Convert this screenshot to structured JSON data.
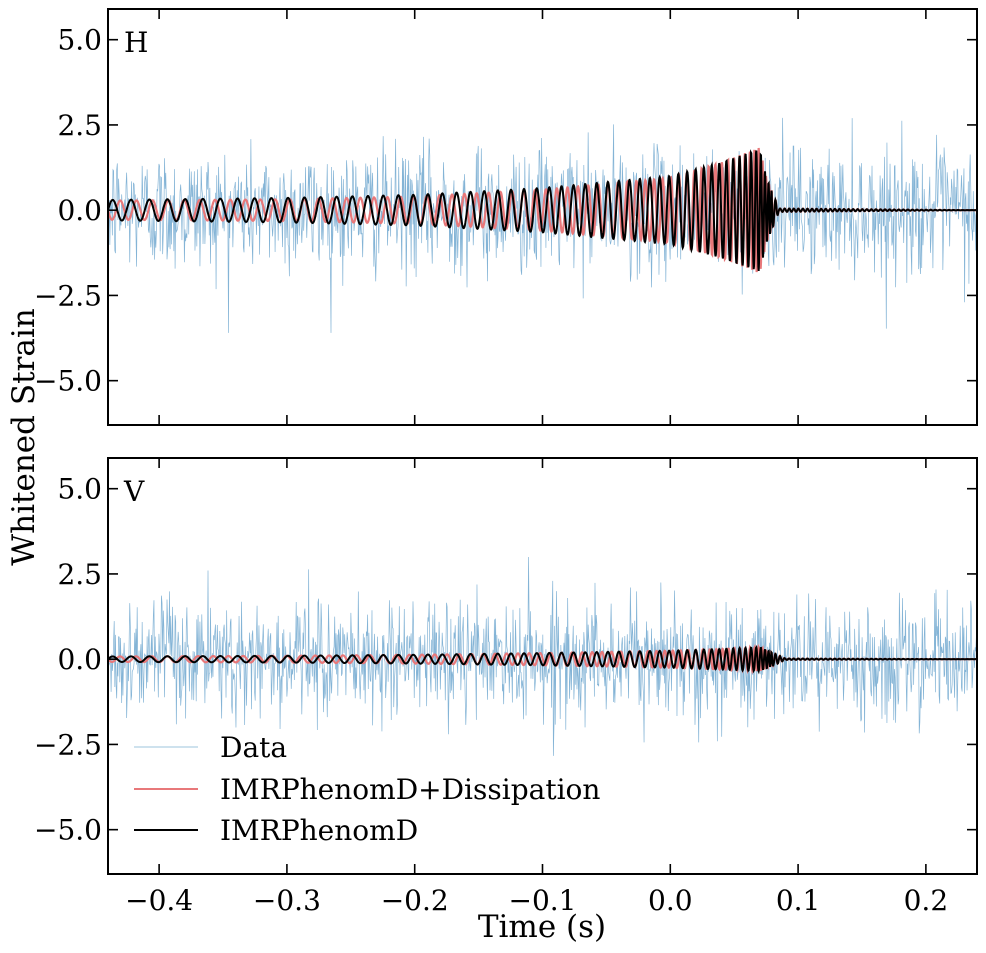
{
  "chart_data": {
    "type": "line",
    "ylabel": "Whitened Strain",
    "xlabel": "Time (s)",
    "xlim": [
      -0.44,
      0.24
    ],
    "ylim": [
      -6.3,
      5.9
    ],
    "xticks": [
      -0.4,
      -0.3,
      -0.2,
      -0.1,
      0.0,
      0.1,
      0.2
    ],
    "xtick_labels": [
      "−0.4",
      "−0.3",
      "−0.2",
      "−0.1",
      "0.0",
      "0.1",
      "0.2"
    ],
    "yticks": [
      5.0,
      2.5,
      0.0,
      -2.5,
      -5.0
    ],
    "ytick_labels": [
      "5.0",
      "2.5",
      "0.0",
      "−2.5",
      "−5.0"
    ],
    "colors": {
      "data": "#1f77b4",
      "dissipation": "#e8787a",
      "phenomd": "#000000"
    },
    "legend": {
      "location": "lower-left",
      "entries": [
        "Data",
        "IMRPhenomD+Dissipation",
        "IMRPhenomD"
      ]
    },
    "panels": [
      {
        "label": "H",
        "series": [
          {
            "name": "Data",
            "kind": "noise",
            "amplitude_std": 0.9,
            "max_abs": 3.6
          },
          {
            "name": "IMRPhenomD+Dissipation",
            "t": [
              -0.44,
              -0.3,
              -0.2,
              -0.1,
              0.0,
              0.04,
              0.07,
              0.075,
              0.085,
              0.24
            ],
            "envelope": [
              0.28,
              0.32,
              0.4,
              0.6,
              0.95,
              1.4,
              1.85,
              1.0,
              0.05,
              0.0
            ],
            "cycles_to_peak": 59
          },
          {
            "name": "IMRPhenomD",
            "t": [
              -0.44,
              -0.3,
              -0.2,
              -0.1,
              0.0,
              0.04,
              0.07,
              0.075,
              0.085,
              0.24
            ],
            "envelope": [
              0.3,
              0.36,
              0.45,
              0.65,
              1.0,
              1.4,
              1.8,
              1.0,
              0.05,
              0.0
            ],
            "cycles_to_peak": 52
          }
        ]
      },
      {
        "label": "V",
        "series": [
          {
            "name": "Data",
            "kind": "noise",
            "amplitude_std": 0.85,
            "max_abs": 3.5
          },
          {
            "name": "IMRPhenomD+Dissipation",
            "t": [
              -0.44,
              -0.3,
              -0.2,
              -0.1,
              0.0,
              0.04,
              0.07,
              0.08,
              0.09,
              0.24
            ],
            "envelope": [
              0.08,
              0.1,
              0.13,
              0.18,
              0.25,
              0.3,
              0.35,
              0.2,
              0.02,
              0.0
            ],
            "cycles_to_peak": 60
          },
          {
            "name": "IMRPhenomD",
            "t": [
              -0.44,
              -0.3,
              -0.2,
              -0.1,
              0.0,
              0.04,
              0.07,
              0.08,
              0.09,
              0.24
            ],
            "envelope": [
              0.08,
              0.1,
              0.13,
              0.18,
              0.25,
              0.3,
              0.35,
              0.2,
              0.02,
              0.0
            ],
            "cycles_to_peak": 52
          }
        ]
      }
    ]
  }
}
